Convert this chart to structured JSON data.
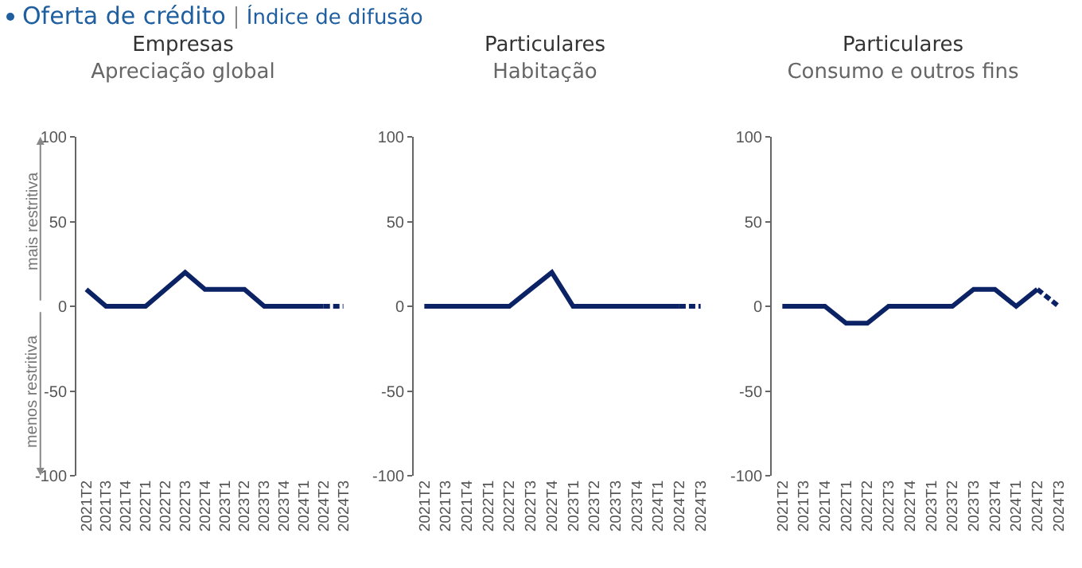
{
  "chart_data": [
    {
      "type": "line",
      "title": "Empresas",
      "subtitle": "Apreciação global",
      "categories": [
        "2021T2",
        "2021T3",
        "2021T4",
        "2022T1",
        "2022T2",
        "2022T3",
        "2022T4",
        "2023T1",
        "2023T2",
        "2023T3",
        "2023T4",
        "2024T1",
        "2024T2",
        "2024T3"
      ],
      "ylim": [
        -100,
        100
      ],
      "yticks": [
        -100,
        -50,
        0,
        50,
        100
      ],
      "grid": false,
      "marker": "none",
      "annotations": [
        "Oferta de crédito",
        "Índice de difusão",
        "mais restritiva",
        "menos restritiva"
      ],
      "series": [
        {
          "color": "#0b2265",
          "values": [
            10,
            0,
            0,
            0,
            10,
            20,
            10,
            10,
            10,
            0,
            0,
            0,
            0,
            null
          ]
        },
        {
          "color": "#0b2265",
          "line_style": "dashed",
          "values": [
            null,
            null,
            null,
            null,
            null,
            null,
            null,
            null,
            null,
            null,
            null,
            null,
            0,
            0
          ]
        }
      ]
    },
    {
      "type": "line",
      "title": "Particulares",
      "subtitle": "Habitação",
      "categories": [
        "2021T2",
        "2021T3",
        "2021T4",
        "2022T1",
        "2022T2",
        "2022T3",
        "2022T4",
        "2023T1",
        "2023T2",
        "2023T3",
        "2023T4",
        "2024T1",
        "2024T2",
        "2024T3"
      ],
      "ylim": [
        -100,
        100
      ],
      "yticks": [
        -100,
        -50,
        0,
        50,
        100
      ],
      "grid": false,
      "marker": "none",
      "series": [
        {
          "color": "#0b2265",
          "values": [
            0,
            0,
            0,
            0,
            0,
            10,
            20,
            0,
            0,
            0,
            0,
            0,
            0,
            null
          ]
        },
        {
          "color": "#0b2265",
          "line_style": "dashed",
          "values": [
            null,
            null,
            null,
            null,
            null,
            null,
            null,
            null,
            null,
            null,
            null,
            null,
            0,
            0
          ]
        }
      ]
    },
    {
      "type": "line",
      "title": "Particulares",
      "subtitle": "Consumo e outros fins",
      "categories": [
        "2021T2",
        "2021T3",
        "2021T4",
        "2022T1",
        "2022T2",
        "2022T3",
        "2022T4",
        "2023T1",
        "2023T2",
        "2023T3",
        "2023T4",
        "2024T1",
        "2024T2",
        "2024T3"
      ],
      "ylim": [
        -100,
        100
      ],
      "yticks": [
        -100,
        -50,
        0,
        50,
        100
      ],
      "grid": false,
      "marker": "none",
      "series": [
        {
          "color": "#0b2265",
          "values": [
            0,
            0,
            0,
            -10,
            -10,
            0,
            0,
            0,
            0,
            10,
            10,
            0,
            10,
            null
          ]
        },
        {
          "color": "#0b2265",
          "line_style": "dashed",
          "values": [
            null,
            null,
            null,
            null,
            null,
            null,
            null,
            null,
            null,
            null,
            null,
            null,
            10,
            0
          ]
        }
      ]
    }
  ]
}
